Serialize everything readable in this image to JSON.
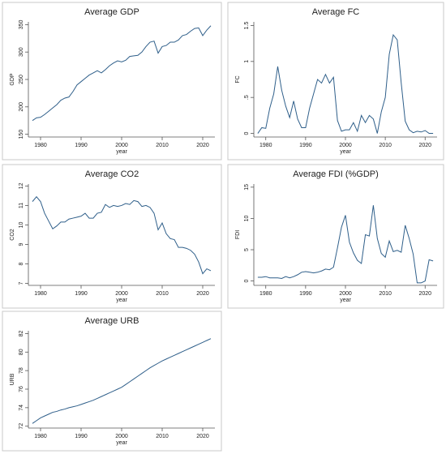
{
  "chart_data": [
    {
      "type": "line",
      "title": "Average GDP",
      "xlabel": "year",
      "ylabel": "GDP",
      "color": "#2f5f8a",
      "x": [
        1978,
        1979,
        1980,
        1981,
        1982,
        1983,
        1984,
        1985,
        1986,
        1987,
        1988,
        1989,
        1990,
        1991,
        1992,
        1993,
        1994,
        1995,
        1996,
        1997,
        1998,
        1999,
        2000,
        2001,
        2002,
        2003,
        2004,
        2005,
        2006,
        2007,
        2008,
        2009,
        2010,
        2011,
        2012,
        2013,
        2014,
        2015,
        2016,
        2017,
        2018,
        2019,
        2020,
        2021,
        2022
      ],
      "values": [
        175,
        180,
        181,
        186,
        192,
        198,
        204,
        212,
        216,
        218,
        228,
        240,
        246,
        252,
        258,
        262,
        266,
        262,
        268,
        275,
        280,
        284,
        282,
        285,
        292,
        293,
        294,
        300,
        310,
        318,
        320,
        298,
        310,
        312,
        318,
        318,
        322,
        330,
        332,
        338,
        343,
        344,
        330,
        340,
        348
      ],
      "xlim": [
        1977,
        2023
      ],
      "xticks": [
        1980,
        1990,
        2000,
        2010,
        2020
      ],
      "ylim": [
        145,
        355
      ],
      "yticks": [
        150,
        200,
        250,
        300,
        350
      ]
    },
    {
      "type": "line",
      "title": "Average FC",
      "xlabel": "year",
      "ylabel": "FC",
      "color": "#2f5f8a",
      "x": [
        1978,
        1979,
        1980,
        1981,
        1982,
        1983,
        1984,
        1985,
        1986,
        1987,
        1988,
        1989,
        1990,
        1991,
        1992,
        1993,
        1994,
        1995,
        1996,
        1997,
        1998,
        1999,
        2000,
        2001,
        2002,
        2003,
        2004,
        2005,
        2006,
        2007,
        2008,
        2009,
        2010,
        2011,
        2012,
        2013,
        2014,
        2015,
        2016,
        2017,
        2018,
        2019,
        2020,
        2021,
        2022
      ],
      "values": [
        0,
        0.08,
        0.07,
        0.35,
        0.55,
        0.93,
        0.6,
        0.38,
        0.22,
        0.45,
        0.2,
        0.08,
        0.08,
        0.35,
        0.55,
        0.75,
        0.7,
        0.82,
        0.7,
        0.78,
        0.18,
        0.03,
        0.05,
        0.05,
        0.15,
        0.03,
        0.25,
        0.15,
        0.25,
        0.2,
        0,
        0.3,
        0.5,
        1.1,
        1.37,
        1.3,
        0.7,
        0.17,
        0.05,
        0.01,
        0.03,
        0.02,
        0.04,
        0,
        0
      ],
      "xlim": [
        1977,
        2023
      ],
      "xticks": [
        1980,
        1990,
        2000,
        2010,
        2020
      ],
      "ylim": [
        -0.05,
        1.55
      ],
      "yticks": [
        0,
        {
          "value": 0.5,
          "label": ".5"
        },
        1,
        1.5
      ]
    },
    {
      "type": "line",
      "title": "Average CO2",
      "xlabel": "year",
      "ylabel": "CO2",
      "color": "#2f5f8a",
      "x": [
        1978,
        1979,
        1980,
        1981,
        1982,
        1983,
        1984,
        1985,
        1986,
        1987,
        1988,
        1989,
        1990,
        1991,
        1992,
        1993,
        1994,
        1995,
        1996,
        1997,
        1998,
        1999,
        2000,
        2001,
        2002,
        2003,
        2004,
        2005,
        2006,
        2007,
        2008,
        2009,
        2010,
        2011,
        2012,
        2013,
        2014,
        2015,
        2016,
        2017,
        2018,
        2019,
        2020,
        2021,
        2022
      ],
      "values": [
        11.2,
        11.45,
        11.2,
        10.6,
        10.2,
        9.8,
        9.95,
        10.15,
        10.15,
        10.3,
        10.35,
        10.4,
        10.45,
        10.6,
        10.35,
        10.35,
        10.6,
        10.65,
        11.05,
        10.9,
        11.0,
        10.95,
        11.0,
        11.1,
        11.05,
        11.25,
        11.2,
        10.95,
        11.0,
        10.9,
        10.6,
        9.75,
        10.1,
        9.55,
        9.3,
        9.25,
        8.85,
        8.85,
        8.8,
        8.7,
        8.5,
        8.1,
        7.5,
        7.75,
        7.65
      ],
      "xlim": [
        1977,
        2023
      ],
      "xticks": [
        1980,
        1990,
        2000,
        2010,
        2020
      ],
      "ylim": [
        6.9,
        12.1
      ],
      "yticks": [
        7,
        8,
        9,
        10,
        11,
        12
      ]
    },
    {
      "type": "line",
      "title": "Average FDI (%GDP)",
      "xlabel": "year",
      "ylabel": "FDI",
      "color": "#2f5f8a",
      "x": [
        1978,
        1979,
        1980,
        1981,
        1982,
        1983,
        1984,
        1985,
        1986,
        1987,
        1988,
        1989,
        1990,
        1991,
        1992,
        1993,
        1994,
        1995,
        1996,
        1997,
        1998,
        1999,
        2000,
        2001,
        2002,
        2003,
        2004,
        2005,
        2006,
        2007,
        2008,
        2009,
        2010,
        2011,
        2012,
        2013,
        2014,
        2015,
        2016,
        2017,
        2018,
        2019,
        2020,
        2021,
        2022
      ],
      "values": [
        0.6,
        0.6,
        0.7,
        0.5,
        0.5,
        0.5,
        0.4,
        0.7,
        0.5,
        0.7,
        1.0,
        1.4,
        1.5,
        1.4,
        1.3,
        1.4,
        1.6,
        1.9,
        1.8,
        2.2,
        5.3,
        8.6,
        10.5,
        6.2,
        4.5,
        3.3,
        2.8,
        7.4,
        7.2,
        12.1,
        6.8,
        4.4,
        3.8,
        6.4,
        4.7,
        4.9,
        4.6,
        8.9,
        6.8,
        4.3,
        -0.3,
        -0.3,
        0,
        3.4,
        3.2
      ],
      "xlim": [
        1977,
        2023
      ],
      "xticks": [
        1980,
        1990,
        2000,
        2010,
        2020
      ],
      "ylim": [
        -0.7,
        15.5
      ],
      "yticks": [
        0,
        5,
        10,
        15
      ]
    },
    {
      "type": "line",
      "title": "Average URB",
      "xlabel": "year",
      "ylabel": "URB",
      "color": "#2f5f8a",
      "x": [
        1978,
        1979,
        1980,
        1981,
        1982,
        1983,
        1984,
        1985,
        1986,
        1987,
        1988,
        1989,
        1990,
        1991,
        1992,
        1993,
        1994,
        1995,
        1996,
        1997,
        1998,
        1999,
        2000,
        2001,
        2002,
        2003,
        2004,
        2005,
        2006,
        2007,
        2008,
        2009,
        2010,
        2011,
        2012,
        2013,
        2014,
        2015,
        2016,
        2017,
        2018,
        2019,
        2020,
        2021,
        2022
      ],
      "values": [
        72.3,
        72.6,
        72.9,
        73.1,
        73.3,
        73.5,
        73.6,
        73.75,
        73.85,
        74.0,
        74.1,
        74.2,
        74.35,
        74.5,
        74.65,
        74.8,
        75.0,
        75.2,
        75.4,
        75.6,
        75.8,
        76.0,
        76.2,
        76.5,
        76.8,
        77.1,
        77.4,
        77.7,
        78.0,
        78.3,
        78.55,
        78.8,
        79.05,
        79.25,
        79.45,
        79.65,
        79.85,
        80.05,
        80.25,
        80.45,
        80.65,
        80.85,
        81.05,
        81.25,
        81.45
      ],
      "xlim": [
        1977,
        2023
      ],
      "xticks": [
        1980,
        1990,
        2000,
        2010,
        2020
      ],
      "ylim": [
        71.8,
        82.3
      ],
      "yticks": [
        72,
        74,
        76,
        78,
        80,
        82
      ]
    }
  ]
}
